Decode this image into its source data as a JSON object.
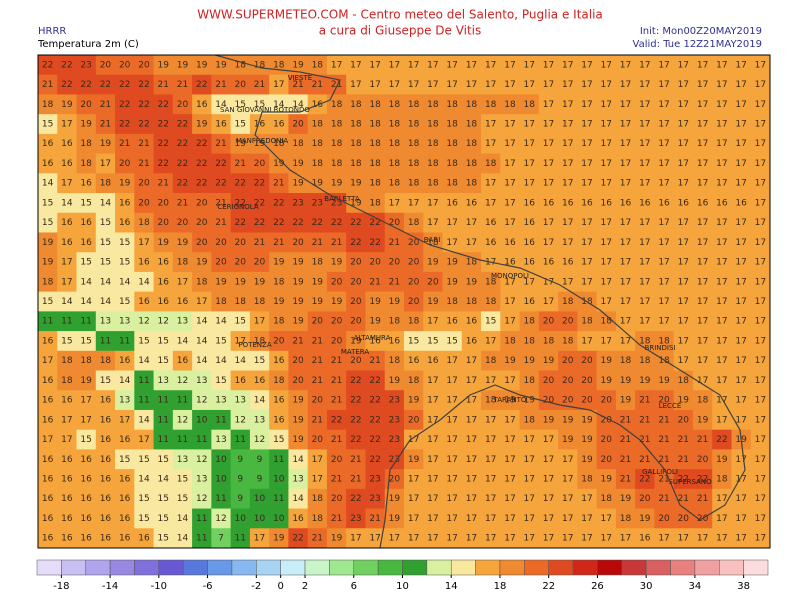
{
  "header": {
    "site": "WWW.SUPERMETEO.COM - Centro meteo del Salento, Puglia e Italia",
    "author": "a cura di Giuseppe De Vitis",
    "model": "HRRR",
    "variable": "Temperatura 2m (C)",
    "init": "Init: Mon00Z20MAY2019",
    "valid": "Valid: Tue 12Z21MAY2019"
  },
  "map": {
    "rows": [
      [
        22,
        22,
        23,
        20,
        20,
        20,
        19,
        19,
        19,
        19,
        18,
        18,
        18,
        19,
        18,
        17,
        17,
        17,
        17,
        17,
        17,
        17,
        17,
        17,
        17,
        17,
        17,
        17,
        17,
        17,
        17,
        17,
        17,
        17,
        17,
        17,
        17,
        17
      ],
      [
        21,
        22,
        22,
        22,
        22,
        22,
        21,
        21,
        22,
        21,
        20,
        21,
        17,
        21,
        21,
        21,
        17,
        17,
        17,
        17,
        17,
        17,
        17,
        17,
        17,
        17,
        17,
        17,
        17,
        17,
        17,
        17,
        17,
        17,
        17,
        17,
        17,
        17
      ],
      [
        18,
        19,
        20,
        21,
        22,
        22,
        22,
        20,
        16,
        14,
        15,
        15,
        14,
        14,
        16,
        18,
        18,
        18,
        18,
        18,
        18,
        18,
        18,
        18,
        18,
        18,
        17,
        17,
        17,
        17,
        17,
        17,
        17,
        17,
        17,
        17,
        17,
        17
      ],
      [
        15,
        17,
        19,
        21,
        22,
        22,
        22,
        22,
        19,
        16,
        15,
        16,
        16,
        20,
        18,
        18,
        18,
        18,
        18,
        18,
        18,
        18,
        18,
        17,
        17,
        17,
        17,
        17,
        17,
        17,
        17,
        17,
        17,
        17,
        17,
        17,
        17,
        17
      ],
      [
        16,
        16,
        18,
        19,
        21,
        21,
        22,
        22,
        22,
        21,
        19,
        19,
        18,
        18,
        18,
        18,
        18,
        18,
        18,
        18,
        18,
        18,
        18,
        17,
        17,
        17,
        17,
        17,
        17,
        17,
        17,
        17,
        17,
        17,
        17,
        17,
        17,
        17
      ],
      [
        16,
        16,
        18,
        17,
        20,
        21,
        22,
        22,
        22,
        22,
        21,
        20,
        19,
        19,
        18,
        18,
        18,
        18,
        18,
        18,
        18,
        18,
        18,
        18,
        17,
        17,
        17,
        17,
        17,
        17,
        17,
        17,
        17,
        17,
        17,
        17,
        17,
        17
      ],
      [
        14,
        17,
        16,
        18,
        19,
        20,
        21,
        22,
        22,
        22,
        22,
        22,
        21,
        19,
        19,
        19,
        19,
        18,
        18,
        18,
        18,
        18,
        18,
        17,
        17,
        17,
        17,
        17,
        17,
        17,
        17,
        17,
        17,
        17,
        17,
        17,
        17,
        17
      ],
      [
        15,
        14,
        15,
        14,
        16,
        20,
        20,
        21,
        20,
        21,
        22,
        22,
        22,
        23,
        23,
        23,
        19,
        18,
        17,
        17,
        17,
        16,
        16,
        17,
        17,
        16,
        16,
        16,
        16,
        16,
        16,
        16,
        16,
        16,
        16,
        16,
        16,
        17
      ],
      [
        15,
        16,
        16,
        15,
        16,
        18,
        20,
        20,
        20,
        21,
        22,
        22,
        22,
        22,
        22,
        22,
        22,
        22,
        20,
        18,
        17,
        17,
        17,
        16,
        17,
        16,
        17,
        17,
        17,
        17,
        17,
        17,
        17,
        17,
        17,
        17,
        17,
        17
      ],
      [
        19,
        16,
        16,
        15,
        15,
        17,
        19,
        19,
        20,
        20,
        20,
        21,
        21,
        20,
        21,
        21,
        22,
        22,
        21,
        20,
        18,
        17,
        17,
        16,
        16,
        16,
        17,
        17,
        17,
        17,
        17,
        17,
        17,
        17,
        17,
        17,
        17,
        17
      ],
      [
        19,
        17,
        15,
        15,
        15,
        16,
        16,
        18,
        19,
        20,
        20,
        20,
        19,
        19,
        18,
        19,
        20,
        20,
        20,
        20,
        19,
        19,
        18,
        17,
        16,
        16,
        16,
        16,
        17,
        17,
        17,
        17,
        17,
        17,
        17,
        17,
        17,
        17
      ],
      [
        18,
        17,
        14,
        14,
        14,
        14,
        16,
        17,
        18,
        19,
        19,
        19,
        18,
        19,
        19,
        20,
        20,
        21,
        21,
        20,
        20,
        19,
        19,
        18,
        17,
        17,
        17,
        17,
        17,
        17,
        17,
        17,
        17,
        17,
        17,
        17,
        17,
        17
      ],
      [
        15,
        14,
        14,
        14,
        15,
        16,
        16,
        16,
        17,
        18,
        18,
        18,
        19,
        19,
        19,
        19,
        20,
        19,
        19,
        20,
        19,
        18,
        18,
        18,
        17,
        16,
        17,
        18,
        18,
        17,
        17,
        17,
        17,
        17,
        17,
        17,
        17,
        17
      ],
      [
        11,
        11,
        11,
        13,
        13,
        12,
        12,
        13,
        14,
        14,
        15,
        17,
        18,
        19,
        20,
        20,
        20,
        19,
        18,
        18,
        17,
        16,
        16,
        15,
        17,
        18,
        20,
        20,
        18,
        18,
        17,
        17,
        17,
        17,
        17,
        17,
        17,
        17
      ],
      [
        16,
        15,
        15,
        11,
        11,
        15,
        15,
        14,
        14,
        15,
        17,
        18,
        20,
        21,
        21,
        20,
        19,
        16,
        16,
        15,
        15,
        15,
        16,
        17,
        18,
        18,
        18,
        18,
        17,
        17,
        17,
        18,
        18,
        17,
        17,
        17,
        17,
        17
      ],
      [
        17,
        18,
        18,
        18,
        16,
        14,
        15,
        16,
        14,
        14,
        14,
        15,
        16,
        20,
        21,
        21,
        20,
        21,
        18,
        16,
        16,
        17,
        17,
        18,
        19,
        19,
        19,
        20,
        20,
        19,
        18,
        18,
        18,
        17,
        17,
        17,
        17,
        17
      ],
      [
        16,
        18,
        19,
        15,
        14,
        11,
        13,
        12,
        13,
        15,
        16,
        16,
        18,
        20,
        21,
        21,
        22,
        22,
        19,
        18,
        17,
        17,
        17,
        17,
        17,
        18,
        20,
        20,
        20,
        19,
        19,
        19,
        19,
        18,
        17,
        17,
        17,
        17
      ],
      [
        16,
        16,
        17,
        16,
        13,
        11,
        11,
        11,
        12,
        13,
        13,
        14,
        16,
        19,
        20,
        21,
        22,
        22,
        23,
        19,
        17,
        17,
        17,
        18,
        19,
        19,
        20,
        20,
        20,
        20,
        19,
        21,
        20,
        19,
        18,
        17,
        17,
        17
      ],
      [
        16,
        17,
        17,
        16,
        17,
        14,
        11,
        12,
        10,
        11,
        12,
        13,
        16,
        19,
        21,
        22,
        22,
        22,
        23,
        20,
        17,
        17,
        17,
        17,
        17,
        18,
        19,
        19,
        19,
        20,
        21,
        21,
        21,
        20,
        19,
        17,
        17,
        17
      ],
      [
        17,
        17,
        15,
        16,
        16,
        17,
        11,
        11,
        11,
        13,
        11,
        12,
        15,
        19,
        20,
        21,
        22,
        22,
        23,
        17,
        17,
        17,
        17,
        17,
        17,
        17,
        17,
        19,
        19,
        20,
        21,
        21,
        21,
        21,
        21,
        22,
        19,
        17
      ],
      [
        16,
        16,
        16,
        16,
        15,
        15,
        15,
        13,
        12,
        10,
        9,
        9,
        11,
        14,
        17,
        20,
        21,
        22,
        23,
        19,
        17,
        17,
        17,
        17,
        17,
        17,
        17,
        17,
        19,
        20,
        21,
        21,
        21,
        21,
        20,
        19,
        17,
        17
      ],
      [
        16,
        16,
        16,
        16,
        16,
        14,
        14,
        15,
        13,
        10,
        9,
        9,
        10,
        13,
        17,
        21,
        21,
        23,
        20,
        17,
        17,
        17,
        17,
        17,
        17,
        17,
        17,
        17,
        18,
        19,
        21,
        22,
        21,
        22,
        22,
        18,
        17,
        17
      ],
      [
        16,
        16,
        16,
        16,
        16,
        15,
        15,
        15,
        12,
        11,
        9,
        10,
        11,
        14,
        18,
        20,
        22,
        23,
        19,
        17,
        17,
        17,
        17,
        17,
        17,
        17,
        17,
        17,
        17,
        18,
        19,
        20,
        21,
        21,
        21,
        17,
        17,
        17
      ],
      [
        16,
        16,
        16,
        16,
        16,
        15,
        15,
        14,
        11,
        12,
        10,
        10,
        10,
        16,
        18,
        21,
        23,
        21,
        19,
        17,
        17,
        17,
        17,
        17,
        17,
        17,
        17,
        17,
        17,
        17,
        18,
        19,
        20,
        20,
        20,
        17,
        17,
        17
      ],
      [
        16,
        16,
        16,
        16,
        16,
        16,
        15,
        14,
        11,
        7,
        11,
        17,
        19,
        22,
        21,
        19,
        17,
        17,
        17,
        17,
        17,
        17,
        17,
        17,
        17,
        17,
        17,
        17,
        17,
        17,
        17,
        16,
        17,
        17,
        17,
        17,
        17,
        17
      ]
    ]
  },
  "cities": [
    "VIESTE",
    "SAN GIOVANNI ROTONDO",
    "MANFREDONIA",
    "CERIGNOLA",
    "BARLETTA",
    "BARI",
    "MONOPOLI",
    "POTENZA",
    "ALTAMURA",
    "TARANTO",
    "BRINDISI",
    "LECCE",
    "MATERA",
    "GALLIPOLI",
    "SUPERSANO"
  ],
  "colorbar": {
    "range": [
      -20,
      40
    ],
    "colors": [
      "#e4dcf8",
      "#c8c0f2",
      "#b0a4ec",
      "#9888e4",
      "#8070dc",
      "#6858d4",
      "#5878dc",
      "#6898e8",
      "#88b8f0",
      "#a8d4f4",
      "#c8ecf8",
      "#c8f4c8",
      "#a0e890",
      "#70d060",
      "#48b840",
      "#30a030",
      "#d8f0a0",
      "#f8e8a0",
      "#f5a53c",
      "#f08a30",
      "#ec6a28",
      "#e04a20",
      "#d02818",
      "#b80808",
      "#c83838",
      "#d86060",
      "#e88080",
      "#f0a0a0",
      "#f8c0c0",
      "#fcdcdc"
    ],
    "ticks": [
      -18,
      -14,
      -10,
      -6,
      -2,
      0,
      2,
      6,
      10,
      14,
      18,
      22,
      26,
      30,
      34,
      38
    ]
  }
}
